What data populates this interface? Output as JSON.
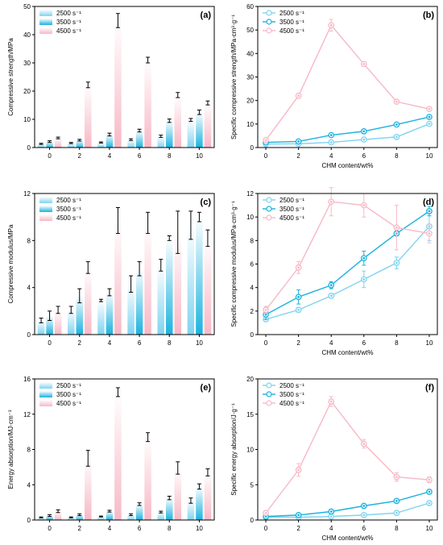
{
  "colors": {
    "s2500": "#7fd3f0",
    "s3500": "#1ab2df",
    "s4500": "#f7b8c6",
    "bar_fade": "#ffffff",
    "axis": "#000000"
  },
  "chart_data": [
    {
      "panel": "(a)",
      "type": "bar",
      "xlabel": "",
      "ylabel": "Compressive strength/MPa",
      "categories": [
        "0",
        "2",
        "4",
        "6",
        "8",
        "10"
      ],
      "ylim": [
        0,
        50
      ],
      "yticks": [
        0,
        10,
        20,
        30,
        40,
        50
      ],
      "legend_position": "top-left",
      "series": [
        {
          "name": "2500 s⁻¹",
          "values": [
            1.3,
            1.6,
            1.8,
            2.8,
            4.0,
            9.8
          ],
          "errors": [
            0.2,
            0.2,
            0.2,
            0.3,
            0.4,
            0.5
          ]
        },
        {
          "name": "3500 s⁻¹",
          "values": [
            2.1,
            2.6,
            4.6,
            6.0,
            9.5,
            12.5
          ],
          "errors": [
            0.3,
            0.3,
            0.5,
            0.5,
            0.6,
            0.8
          ]
        },
        {
          "name": "4500 s⁻¹",
          "values": [
            3.4,
            22.2,
            45.0,
            31.0,
            18.6,
            15.8
          ],
          "errors": [
            0.3,
            1.0,
            2.5,
            1.0,
            0.9,
            0.7
          ]
        }
      ]
    },
    {
      "panel": "(b)",
      "type": "line",
      "xlabel": "CHM content/wt%",
      "ylabel": "Specific compressive strength/MPa·cm³·g⁻¹",
      "x": [
        0,
        2,
        4,
        6,
        8,
        10
      ],
      "xticks": [
        0,
        2,
        4,
        6,
        8,
        10
      ],
      "ylim": [
        0,
        60
      ],
      "yticks": [
        0,
        10,
        20,
        30,
        40,
        50,
        60
      ],
      "legend_position": "top-left",
      "series": [
        {
          "name": "2500 s⁻¹",
          "values": [
            1.5,
            1.6,
            2.2,
            3.4,
            4.5,
            10.1
          ],
          "errors": [
            0,
            0,
            0,
            0,
            0,
            0
          ]
        },
        {
          "name": "3500 s⁻¹",
          "values": [
            2.2,
            2.6,
            5.3,
            6.9,
            9.8,
            13.0
          ],
          "errors": [
            0.2,
            0.2,
            0.3,
            0.3,
            0.4,
            0.5
          ]
        },
        {
          "name": "4500 s⁻¹",
          "values": [
            3.1,
            22.0,
            52.0,
            35.5,
            19.5,
            16.4
          ],
          "errors": [
            0.5,
            1.0,
            2.5,
            1.0,
            0.6,
            0.4
          ]
        }
      ]
    },
    {
      "panel": "(c)",
      "type": "bar",
      "xlabel": "",
      "ylabel": "Compressive modulus/MPa",
      "categories": [
        "0",
        "2",
        "4",
        "6",
        "8",
        "10"
      ],
      "ylim": [
        0,
        12
      ],
      "yticks": [
        0,
        4,
        8,
        12
      ],
      "legend_position": "top-left",
      "series": [
        {
          "name": "2500 s⁻¹",
          "values": [
            1.2,
            2.1,
            2.9,
            4.3,
            5.9,
            9.3
          ],
          "errors": [
            0.2,
            0.3,
            0.1,
            0.7,
            0.5,
            1.2
          ]
        },
        {
          "name": "3500 s⁻¹",
          "values": [
            1.6,
            3.3,
            3.6,
            5.6,
            8.2,
            10.0
          ],
          "errors": [
            0.4,
            0.6,
            0.3,
            0.6,
            0.2,
            0.4
          ]
        },
        {
          "name": "4500 s⁻¹",
          "values": [
            2.1,
            5.7,
            9.7,
            9.5,
            8.7,
            8.2
          ],
          "errors": [
            0.3,
            0.5,
            1.1,
            0.9,
            1.8,
            0.7
          ]
        }
      ]
    },
    {
      "panel": "(d)",
      "type": "line",
      "xlabel": "CHM content/wt%",
      "ylabel": "Specific compressive modulus/MPa·cm³·g⁻¹",
      "x": [
        0,
        2,
        4,
        6,
        8,
        10
      ],
      "xticks": [
        0,
        2,
        4,
        6,
        8,
        10
      ],
      "ylim": [
        0,
        12
      ],
      "yticks": [
        0,
        2,
        4,
        6,
        8,
        10,
        12
      ],
      "legend_position": "top-left",
      "series": [
        {
          "name": "2500 s⁻¹",
          "values": [
            1.3,
            2.1,
            3.3,
            4.7,
            6.1,
            9.2
          ],
          "errors": [
            0.2,
            0.2,
            0.2,
            0.7,
            0.5,
            1.2
          ]
        },
        {
          "name": "3500 s⁻¹",
          "values": [
            1.7,
            3.2,
            4.2,
            6.5,
            8.6,
            10.5
          ],
          "errors": [
            0.4,
            0.6,
            0.3,
            0.6,
            0.2,
            0.4
          ]
        },
        {
          "name": "4500 s⁻¹",
          "values": [
            2.1,
            5.7,
            11.3,
            11.0,
            9.1,
            8.6
          ],
          "errors": [
            0.3,
            0.5,
            1.2,
            1.0,
            1.9,
            0.8
          ]
        }
      ]
    },
    {
      "panel": "(e)",
      "type": "bar",
      "xlabel": "",
      "ylabel": "Energy absorption/MJ·cm⁻³",
      "categories": [
        "0",
        "2",
        "4",
        "6",
        "8",
        "10"
      ],
      "ylim": [
        0,
        16
      ],
      "yticks": [
        0,
        4,
        8,
        12,
        16
      ],
      "legend_position": "top-left",
      "series": [
        {
          "name": "2500 s⁻¹",
          "values": [
            0.3,
            0.3,
            0.4,
            0.6,
            0.9,
            2.2
          ],
          "errors": [
            0.05,
            0.05,
            0.05,
            0.1,
            0.1,
            0.3
          ]
        },
        {
          "name": "3500 s⁻¹",
          "values": [
            0.5,
            0.6,
            1.0,
            1.8,
            2.5,
            3.8
          ],
          "errors": [
            0.1,
            0.1,
            0.1,
            0.15,
            0.2,
            0.3
          ]
        },
        {
          "name": "4500 s⁻¹",
          "values": [
            1.0,
            7.0,
            14.5,
            9.4,
            5.9,
            5.4
          ],
          "errors": [
            0.15,
            0.9,
            0.5,
            0.5,
            0.7,
            0.4
          ]
        }
      ]
    },
    {
      "panel": "(f)",
      "type": "line",
      "xlabel": "CHM content/wt%",
      "ylabel": "Specific energy absorption/J·g⁻¹",
      "x": [
        0,
        2,
        4,
        6,
        8,
        10
      ],
      "xticks": [
        0,
        2,
        4,
        6,
        8,
        10
      ],
      "ylim": [
        0,
        20
      ],
      "yticks": [
        0,
        5,
        10,
        15,
        20
      ],
      "legend_position": "top-left",
      "series": [
        {
          "name": "2500 s⁻¹",
          "values": [
            0.4,
            0.4,
            0.5,
            0.7,
            1.0,
            2.4
          ],
          "errors": [
            0.05,
            0.05,
            0.05,
            0.1,
            0.1,
            0.2
          ]
        },
        {
          "name": "3500 s⁻¹",
          "values": [
            0.5,
            0.7,
            1.2,
            2.0,
            2.7,
            4.0
          ],
          "errors": [
            0.1,
            0.1,
            0.1,
            0.15,
            0.2,
            0.2
          ]
        },
        {
          "name": "4500 s⁻¹",
          "values": [
            1.0,
            7.1,
            16.8,
            10.8,
            6.1,
            5.7
          ],
          "errors": [
            0.3,
            0.9,
            0.7,
            0.6,
            0.6,
            0.4
          ]
        }
      ]
    }
  ]
}
